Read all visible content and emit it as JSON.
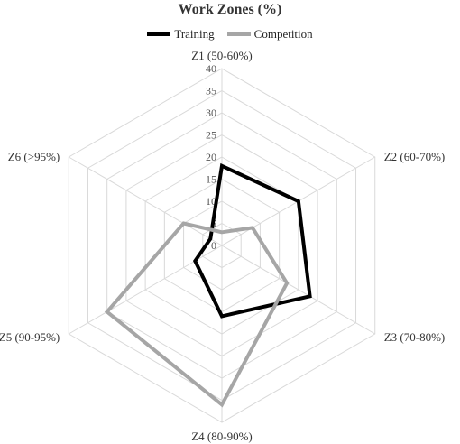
{
  "chart_data": {
    "type": "radar",
    "title": "Work Zones (%)",
    "axes": [
      "Z1 (50-60%)",
      "Z2 (60-70%)",
      "Z3 (70-80%)",
      "Z4 (80-90%)",
      "Z5 (90-95%)",
      "Z6 (>95%)"
    ],
    "rlim": [
      0,
      40
    ],
    "ticks": [
      "0",
      "5",
      "10",
      "15",
      "20",
      "25",
      "30",
      "35",
      "40"
    ],
    "grid": true,
    "legend_position": "top",
    "series": [
      {
        "name": "Training",
        "color": "#000000",
        "values": [
          18,
          20,
          23,
          16,
          7,
          3
        ]
      },
      {
        "name": "Competition",
        "color": "#a6a6a6",
        "values": [
          3,
          8,
          17,
          36,
          30,
          10
        ]
      }
    ]
  }
}
